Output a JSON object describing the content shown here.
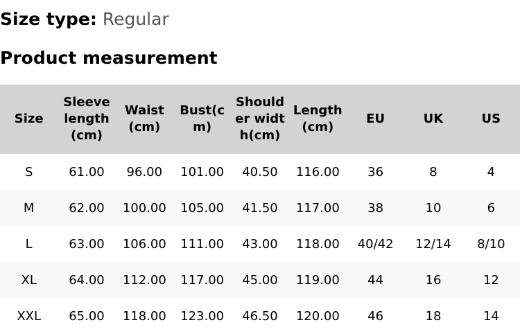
{
  "size_type": {
    "label": "Size type:",
    "value": "Regular"
  },
  "section_title": "Product measurement",
  "table": {
    "headers": [
      "Size",
      "Sleeve length (cm)",
      "Waist(cm)",
      "Bust(cm)",
      "Shoulder width(cm)",
      "Length (cm)",
      "EU",
      "UK",
      "US"
    ],
    "rows": [
      [
        "S",
        "61.00",
        "96.00",
        "101.00",
        "40.50",
        "116.00",
        "36",
        "8",
        "4"
      ],
      [
        "M",
        "62.00",
        "100.00",
        "105.00",
        "41.50",
        "117.00",
        "38",
        "10",
        "6"
      ],
      [
        "L",
        "63.00",
        "106.00",
        "111.00",
        "43.00",
        "118.00",
        "40/42",
        "12/14",
        "8/10"
      ],
      [
        "XL",
        "64.00",
        "112.00",
        "117.00",
        "45.00",
        "119.00",
        "44",
        "16",
        "12"
      ],
      [
        "XXL",
        "65.00",
        "118.00",
        "123.00",
        "46.50",
        "120.00",
        "46",
        "18",
        "14"
      ]
    ]
  },
  "colors": {
    "header_bg": "#d3d3d3",
    "alt_row_bg": "#f8f8f8",
    "value_text": "#555555"
  }
}
